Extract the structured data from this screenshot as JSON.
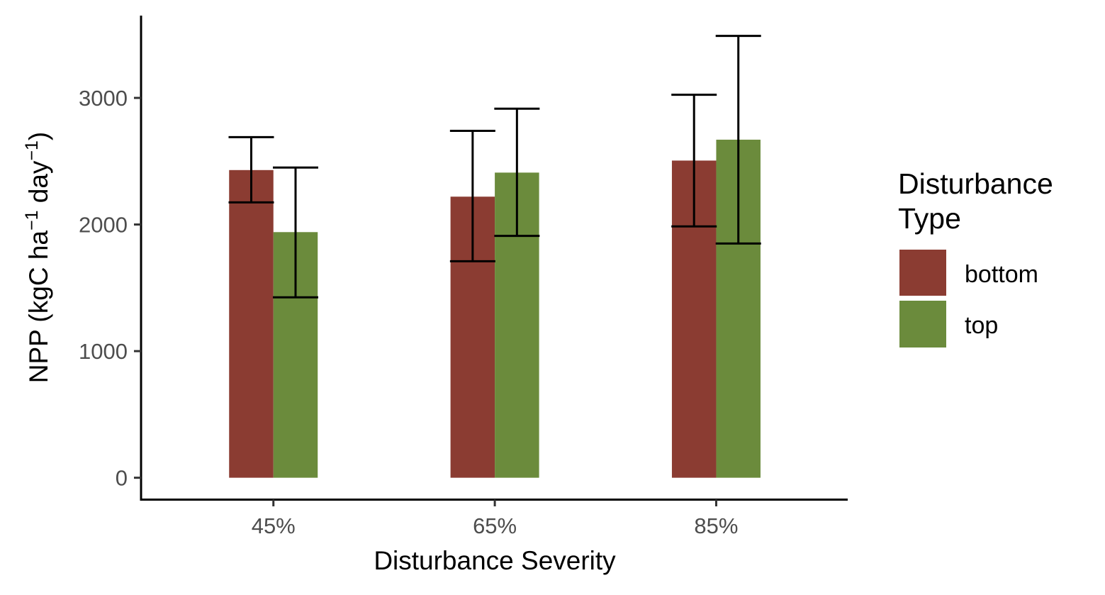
{
  "chart_data": {
    "type": "bar",
    "categories": [
      "45%",
      "65%",
      "85%"
    ],
    "series": [
      {
        "name": "bottom",
        "color": "#8b3c32",
        "values": [
          2430,
          2220,
          2505
        ],
        "error_low": [
          2175,
          1710,
          1985
        ],
        "error_high": [
          2690,
          2740,
          3025
        ]
      },
      {
        "name": "top",
        "color": "#6b8b3c",
        "values": [
          1940,
          2410,
          2670
        ],
        "error_low": [
          1425,
          1910,
          1850
        ],
        "error_high": [
          2450,
          2915,
          3490
        ]
      }
    ],
    "ylim": [
      -170,
      3650
    ],
    "yticks": [
      0,
      1000,
      2000,
      3000
    ],
    "ytick_labels": [
      "0",
      "1000",
      "2000",
      "3000"
    ],
    "xlabel": "Disturbance Severity",
    "ylabel": {
      "prefix": "NPP (kgC ha",
      "sup1": "−1",
      "middle": " day",
      "sup2": "−1",
      "suffix": ")"
    },
    "legend": {
      "title_line1": "Disturbance",
      "title_line2": "Type",
      "position": "right"
    },
    "grid": false
  }
}
